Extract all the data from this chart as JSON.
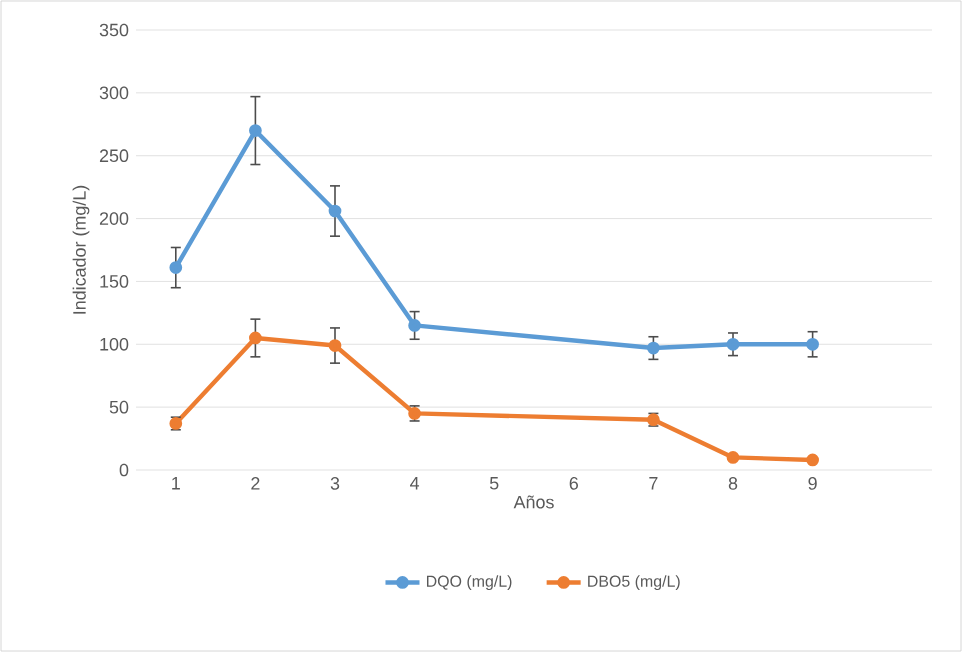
{
  "chart_data": {
    "type": "line",
    "xlabel": "Años",
    "ylabel": "Indicador (mg/L)",
    "x": [
      1,
      2,
      3,
      4,
      7,
      8,
      9
    ],
    "series": [
      {
        "name": "DQO (mg/L)",
        "color": "#5b9bd5",
        "values": [
          161,
          270,
          206,
          115,
          97,
          100,
          100
        ],
        "errors": [
          16,
          27,
          20,
          11,
          9,
          9,
          10
        ]
      },
      {
        "name": "DBO5 (mg/L)",
        "color": "#ed7d31",
        "values": [
          37,
          105,
          99,
          45,
          40,
          10,
          8
        ],
        "errors": [
          5,
          15,
          14,
          6,
          5,
          null,
          null
        ]
      }
    ],
    "xlim": [
      0.5,
      10.5
    ],
    "xticks": [
      1,
      2,
      3,
      4,
      5,
      6,
      7,
      8,
      9
    ],
    "ylim": [
      0,
      350
    ],
    "yticks": [
      0,
      50,
      100,
      150,
      200,
      250,
      300,
      350
    ],
    "grid": "y",
    "legend": "bottom",
    "marker": "circle",
    "line_style": "solid"
  }
}
